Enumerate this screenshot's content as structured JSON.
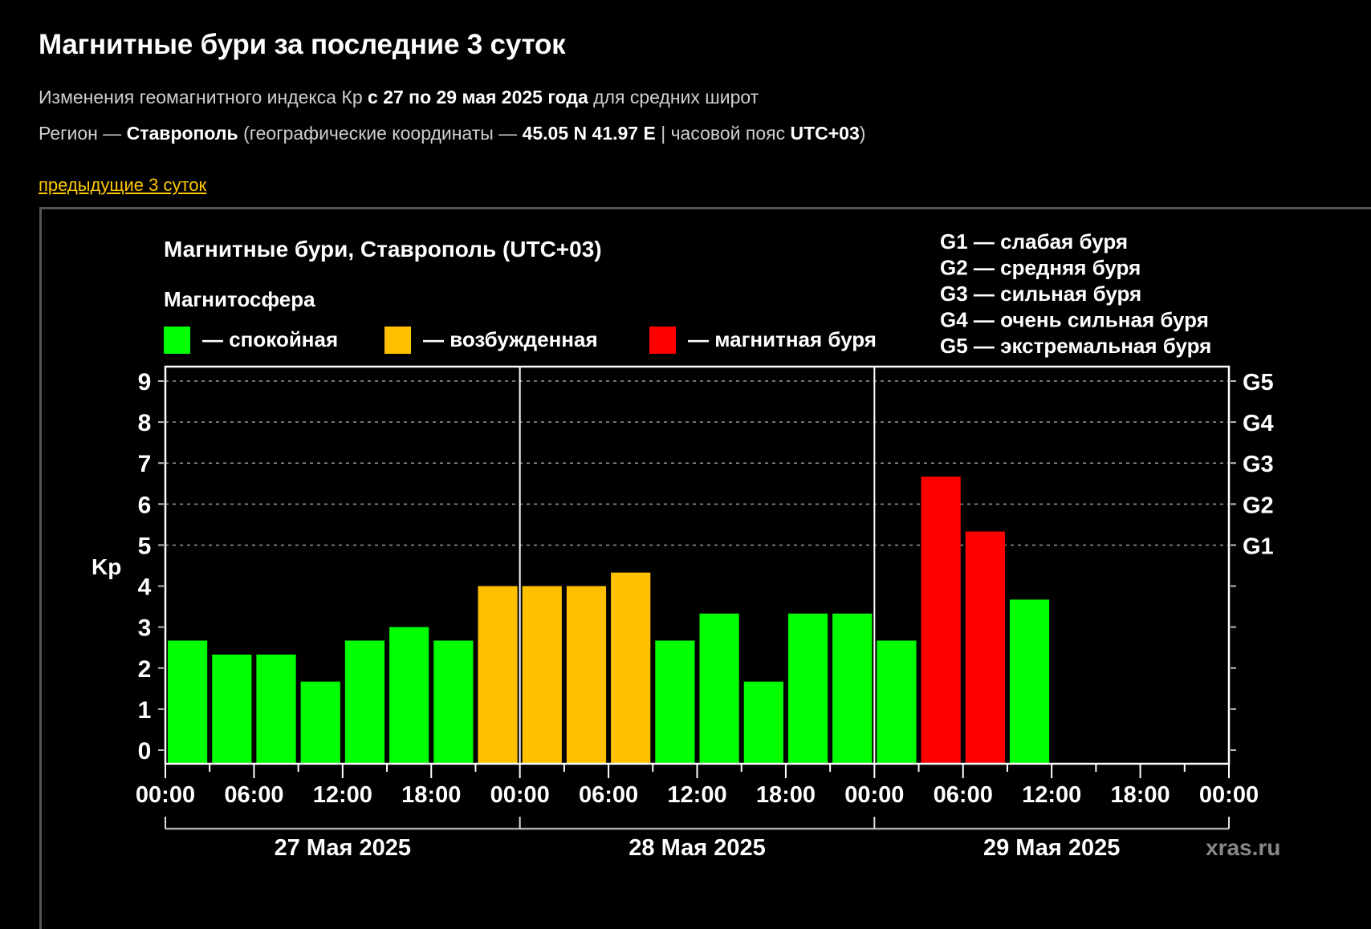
{
  "header": {
    "title": "Магнитные бури за последние 3 суток",
    "line1": {
      "prefix": "Изменения геомагнитного индекса Кр",
      "range": "с 27 по 29 мая 2025 года",
      "suffix": "для средних широт"
    },
    "line2": {
      "region_label": "Регион —",
      "region": "Ставрополь",
      "coords_label": "(географические координаты —",
      "coords": "45.05 N 41.97 E",
      "tz_label": "| часовой пояс",
      "tz": "UTC+03",
      "close": ")"
    },
    "prev_link": "предыдущие 3 суток"
  },
  "colors": {
    "quiet": "#00ff00",
    "excited": "#ffc000",
    "storm": "#ff0000",
    "link": "#ffc800",
    "background": "#000000"
  },
  "chart_data": {
    "type": "bar",
    "title": "Магнитные бури, Ставрополь (UTC+03)",
    "legend_title": "Магнитосфера",
    "legend": [
      {
        "label": "— спокойная",
        "color": "#00ff00"
      },
      {
        "label": "— возбужденная",
        "color": "#ffc000"
      },
      {
        "label": "— магнитная буря",
        "color": "#ff0000"
      }
    ],
    "storm_levels": [
      "G1 — слабая буря",
      "G2 — средняя буря",
      "G3 — сильная буря",
      "G4 — очень сильная буря",
      "G5 — экстремальная буря"
    ],
    "ylabel": "Kp",
    "ylim": [
      0,
      9
    ],
    "yticks": [
      0,
      1,
      2,
      3,
      4,
      5,
      6,
      7,
      8,
      9
    ],
    "right_ticks": [
      {
        "value": 5,
        "label": "G1"
      },
      {
        "value": 6,
        "label": "G2"
      },
      {
        "value": 7,
        "label": "G3"
      },
      {
        "value": 8,
        "label": "G4"
      },
      {
        "value": 9,
        "label": "G5"
      }
    ],
    "grid": "dashed lines at Kp 5–9",
    "interval_hours": 3,
    "x_tick_labels": [
      "00:00",
      "06:00",
      "12:00",
      "18:00",
      "00:00",
      "06:00",
      "12:00",
      "18:00",
      "00:00",
      "06:00",
      "12:00",
      "18:00",
      "00:00"
    ],
    "days": [
      "27 Мая 2025",
      "28 Мая 2025",
      "29 Мая 2025"
    ],
    "series": [
      {
        "day": "27 Мая 2025",
        "time": "00:00",
        "kp": 2.67,
        "state": "quiet"
      },
      {
        "day": "27 Мая 2025",
        "time": "03:00",
        "kp": 2.33,
        "state": "quiet"
      },
      {
        "day": "27 Мая 2025",
        "time": "06:00",
        "kp": 2.33,
        "state": "quiet"
      },
      {
        "day": "27 Мая 2025",
        "time": "09:00",
        "kp": 1.67,
        "state": "quiet"
      },
      {
        "day": "27 Мая 2025",
        "time": "12:00",
        "kp": 2.67,
        "state": "quiet"
      },
      {
        "day": "27 Мая 2025",
        "time": "15:00",
        "kp": 3.0,
        "state": "quiet"
      },
      {
        "day": "27 Мая 2025",
        "time": "18:00",
        "kp": 2.67,
        "state": "quiet"
      },
      {
        "day": "27 Мая 2025",
        "time": "21:00",
        "kp": 4.0,
        "state": "excited"
      },
      {
        "day": "28 Мая 2025",
        "time": "00:00",
        "kp": 4.0,
        "state": "excited"
      },
      {
        "day": "28 Мая 2025",
        "time": "03:00",
        "kp": 4.0,
        "state": "excited"
      },
      {
        "day": "28 Мая 2025",
        "time": "06:00",
        "kp": 4.33,
        "state": "excited"
      },
      {
        "day": "28 Мая 2025",
        "time": "09:00",
        "kp": 2.67,
        "state": "quiet"
      },
      {
        "day": "28 Мая 2025",
        "time": "12:00",
        "kp": 3.33,
        "state": "quiet"
      },
      {
        "day": "28 Мая 2025",
        "time": "15:00",
        "kp": 1.67,
        "state": "quiet"
      },
      {
        "day": "28 Мая 2025",
        "time": "18:00",
        "kp": 3.33,
        "state": "quiet"
      },
      {
        "day": "28 Мая 2025",
        "time": "21:00",
        "kp": 3.33,
        "state": "quiet"
      },
      {
        "day": "29 Мая 2025",
        "time": "00:00",
        "kp": 2.67,
        "state": "quiet"
      },
      {
        "day": "29 Мая 2025",
        "time": "03:00",
        "kp": 6.67,
        "state": "storm"
      },
      {
        "day": "29 Мая 2025",
        "time": "06:00",
        "kp": 5.33,
        "state": "storm"
      },
      {
        "day": "29 Мая 2025",
        "time": "09:00",
        "kp": 3.67,
        "state": "quiet"
      }
    ],
    "total_slots": 24,
    "watermark": "xras.ru"
  }
}
